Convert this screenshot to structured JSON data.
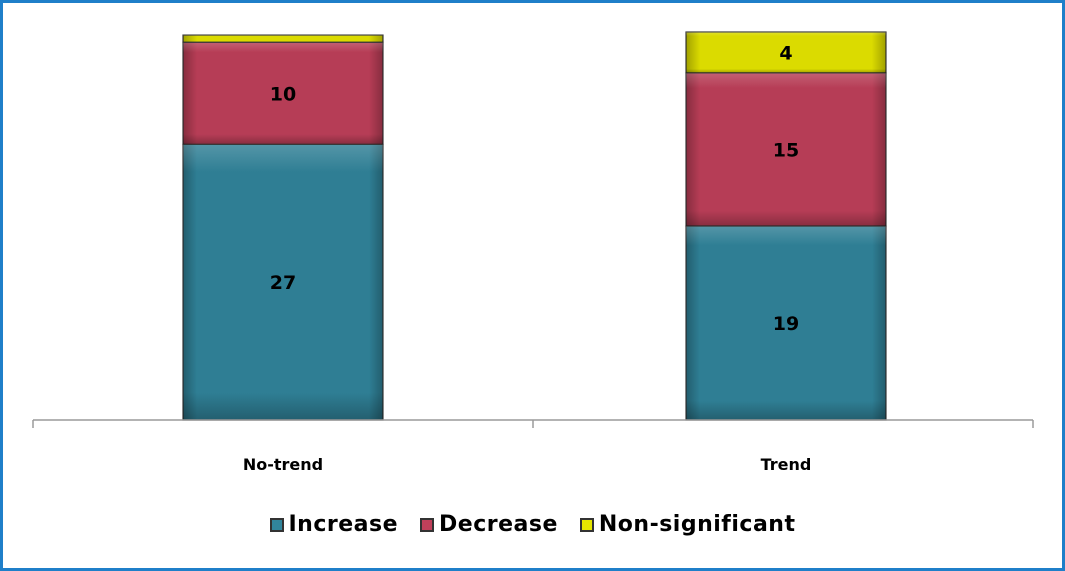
{
  "chart_data": {
    "type": "bar",
    "stacked": true,
    "categories": [
      "No-trend",
      "Trend"
    ],
    "series": [
      {
        "name": "Increase",
        "values": [
          27,
          19
        ],
        "color": "#31859c"
      },
      {
        "name": "Decrease",
        "values": [
          10,
          15
        ],
        "color": "#c0405a"
      },
      {
        "name": "Non-significant",
        "values": [
          0.7,
          4
        ],
        "color": "#e6e600"
      }
    ],
    "value_labels": [
      [
        "27",
        "19"
      ],
      [
        "10",
        "15"
      ],
      [
        "",
        "4"
      ]
    ],
    "legend_position": "bottom",
    "grid": false,
    "ylim": [
      0,
      38
    ]
  }
}
